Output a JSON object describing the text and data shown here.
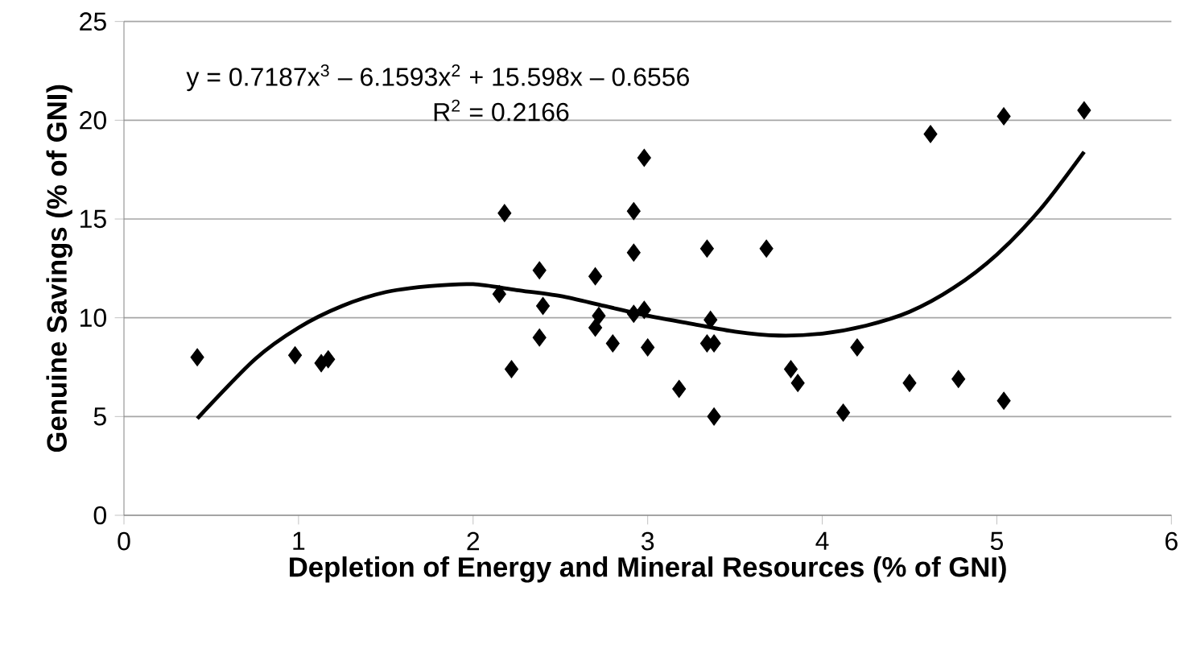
{
  "chart_data": {
    "type": "scatter",
    "xlabel": "Depletion of Energy and Mineral Resources (% of GNI)",
    "ylabel": "Genuine Savings (% of GNI)",
    "annotations": [
      "y = 0.7187x$^{3}$ – 6.1593x$^{2}$ + 15.598x – 0.6556",
      "R$^{2}$ = 0.2166"
    ],
    "xlim": [
      0,
      6
    ],
    "ylim": [
      0,
      25
    ],
    "xticks": [
      0,
      1,
      2,
      3,
      4,
      5,
      6
    ],
    "yticks": [
      0,
      5,
      10,
      15,
      20,
      25
    ],
    "grid": "y",
    "series": [
      {
        "marker": "diamond",
        "color": "#000000",
        "x": [
          0.42,
          0.98,
          1.13,
          1.17,
          2.18,
          2.15,
          2.22,
          2.38,
          2.4,
          2.38,
          2.7,
          2.72,
          2.7,
          2.8,
          2.92,
          2.92,
          2.92,
          2.98,
          2.98,
          3.0,
          3.18,
          3.34,
          3.36,
          3.34,
          3.38,
          3.38,
          3.68,
          3.82,
          3.86,
          4.12,
          4.2,
          4.5,
          4.62,
          4.78,
          5.04,
          5.04,
          5.5
        ],
        "values": [
          8.0,
          8.1,
          7.7,
          7.9,
          15.3,
          11.2,
          7.4,
          12.4,
          10.6,
          9.0,
          12.1,
          10.1,
          9.5,
          8.7,
          10.2,
          15.4,
          13.3,
          18.1,
          10.4,
          8.5,
          6.4,
          13.5,
          9.9,
          8.7,
          8.7,
          5.0,
          13.5,
          7.4,
          6.7,
          5.2,
          8.5,
          6.7,
          19.3,
          6.9,
          20.2,
          5.8,
          20.5
        ]
      },
      {
        "type": "line",
        "marker": "none",
        "line_style": "solid",
        "color": "#000000",
        "x": [
          0.42,
          0.75,
          1.0,
          1.25,
          1.5,
          1.75,
          2.0,
          2.25,
          2.5,
          2.75,
          3.0,
          3.25,
          3.5,
          3.75,
          4.0,
          4.25,
          4.5,
          4.75,
          5.0,
          5.25,
          5.5
        ],
        "values": [
          4.9,
          7.9,
          9.5,
          10.6,
          11.3,
          11.6,
          11.7,
          11.4,
          11.1,
          10.6,
          10.1,
          9.7,
          9.3,
          9.1,
          9.2,
          9.6,
          10.3,
          11.5,
          13.2,
          15.5,
          18.4
        ]
      }
    ]
  }
}
